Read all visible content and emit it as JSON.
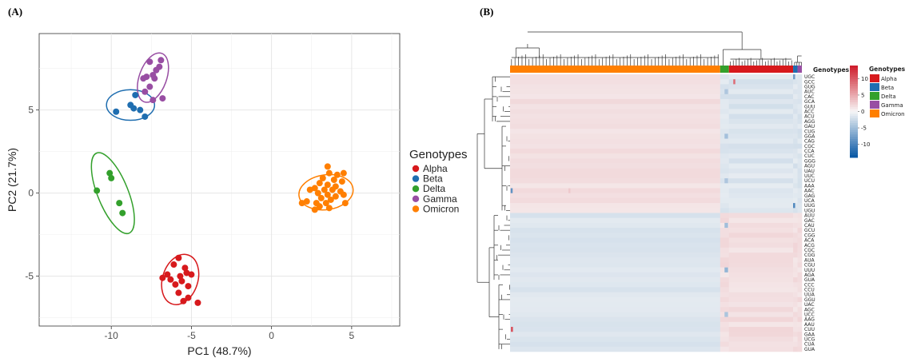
{
  "colors": {
    "Alpha": "#d7191c",
    "Beta": "#1f6eb0",
    "Delta": "#33a02c",
    "Gamma": "#984ea3",
    "Omicron": "#ff7f00"
  },
  "chart_data": [
    {
      "type": "scatter",
      "panel_label": "(A)",
      "xlabel": "PC1 (48.7%)",
      "ylabel": "PC2 (21.7%)",
      "xlim": [
        -14.5,
        8
      ],
      "ylim": [
        -8,
        9.6
      ],
      "xticks": [
        -10,
        -5,
        0,
        5
      ],
      "yticks": [
        -5,
        0,
        5
      ],
      "grid": true,
      "legend": {
        "title": "Genotypes",
        "position": "right",
        "items": [
          "Alpha",
          "Beta",
          "Delta",
          "Gamma",
          "Omicron"
        ]
      },
      "series": [
        {
          "name": "Alpha",
          "points": [
            [
              -5.8,
              -3.9
            ],
            [
              -6.1,
              -4.3
            ],
            [
              -5.4,
              -4.5
            ],
            [
              -6.5,
              -4.9
            ],
            [
              -5.3,
              -4.8
            ],
            [
              -5.0,
              -4.9
            ],
            [
              -5.7,
              -5.0
            ],
            [
              -6.3,
              -5.2
            ],
            [
              -6.8,
              -5.1
            ],
            [
              -5.6,
              -5.3
            ],
            [
              -5.2,
              -5.6
            ],
            [
              -6.0,
              -5.5
            ],
            [
              -5.8,
              -6.0
            ],
            [
              -5.2,
              -6.3
            ],
            [
              -5.5,
              -6.5
            ],
            [
              -4.6,
              -6.6
            ]
          ]
        },
        {
          "name": "Beta",
          "points": [
            [
              -8.5,
              5.9
            ],
            [
              -8.8,
              5.3
            ],
            [
              -8.6,
              5.1
            ],
            [
              -9.7,
              4.9
            ],
            [
              -8.2,
              5.0
            ],
            [
              -7.9,
              4.6
            ]
          ]
        },
        {
          "name": "Delta",
          "points": [
            [
              -10.1,
              1.2
            ],
            [
              -10.0,
              0.9
            ],
            [
              -10.9,
              0.15
            ],
            [
              -9.5,
              -0.6
            ],
            [
              -9.3,
              -1.2
            ]
          ]
        },
        {
          "name": "Gamma",
          "points": [
            [
              -6.9,
              8.0
            ],
            [
              -7.6,
              7.9
            ],
            [
              -7.0,
              7.6
            ],
            [
              -7.2,
              7.4
            ],
            [
              -7.4,
              7.1
            ],
            [
              -7.3,
              6.9
            ],
            [
              -7.8,
              7.0
            ],
            [
              -8.0,
              6.9
            ],
            [
              -7.6,
              6.4
            ],
            [
              -7.9,
              6.1
            ],
            [
              -6.8,
              5.7
            ],
            [
              -7.4,
              5.6
            ]
          ]
        },
        {
          "name": "Omicron",
          "points": [
            [
              3.5,
              1.6
            ],
            [
              3.6,
              1.2
            ],
            [
              4.1,
              1.1
            ],
            [
              4.5,
              1.2
            ],
            [
              3.2,
              0.9
            ],
            [
              3.9,
              0.8
            ],
            [
              4.4,
              0.7
            ],
            [
              3.0,
              0.6
            ],
            [
              3.5,
              0.5
            ],
            [
              4.0,
              0.4
            ],
            [
              2.7,
              0.3
            ],
            [
              3.3,
              0.2
            ],
            [
              3.8,
              0.2
            ],
            [
              4.3,
              0.1
            ],
            [
              2.4,
              0.2
            ],
            [
              2.9,
              0.0
            ],
            [
              3.5,
              -0.1
            ],
            [
              4.0,
              -0.2
            ],
            [
              4.5,
              -0.1
            ],
            [
              3.1,
              -0.3
            ],
            [
              3.7,
              -0.4
            ],
            [
              2.2,
              -0.5
            ],
            [
              2.8,
              -0.6
            ],
            [
              3.4,
              -0.6
            ],
            [
              4.6,
              -0.6
            ],
            [
              1.9,
              -0.6
            ],
            [
              3.0,
              -0.8
            ],
            [
              3.6,
              -0.9
            ],
            [
              2.7,
              -1.0
            ]
          ]
        }
      ],
      "ellipses": [
        {
          "group": "Alpha",
          "center": [
            -5.7,
            -5.2
          ],
          "rx": 1.1,
          "ry": 1.55,
          "angle": 18
        },
        {
          "group": "Beta",
          "center": [
            -8.8,
            5.3
          ],
          "rx": 1.5,
          "ry": 0.92,
          "angle": 0
        },
        {
          "group": "Delta",
          "center": [
            -9.9,
            0.0
          ],
          "rx": 0.95,
          "ry": 2.6,
          "angle": -22
        },
        {
          "group": "Gamma",
          "center": [
            -7.4,
            6.95
          ],
          "rx": 0.85,
          "ry": 1.55,
          "angle": 20
        },
        {
          "group": "Omicron",
          "center": [
            3.4,
            0.05
          ],
          "rx": 1.7,
          "ry": 1.05,
          "angle": -8
        }
      ]
    },
    {
      "type": "heatmap",
      "panel_label": "(B)",
      "column_annotation": {
        "label": "Genotypes",
        "blocks": [
          {
            "group": "Omicron",
            "from": 0,
            "to": 0.72
          },
          {
            "group": "Delta",
            "from": 0.72,
            "to": 0.75
          },
          {
            "group": "Alpha",
            "from": 0.75,
            "to": 0.97
          },
          {
            "group": "Beta",
            "from": 0.97,
            "to": 0.985
          },
          {
            "group": "Gamma",
            "from": 0.985,
            "to": 1.0
          }
        ],
        "legend_items": [
          "Alpha",
          "Beta",
          "Delta",
          "Gamma",
          "Omicron"
        ]
      },
      "color_scale": {
        "ticks": [
          10,
          5,
          0,
          -5,
          -10
        ],
        "min": -14,
        "max": 14,
        "low": "#0b5aa6",
        "mid": "#f7f7f7",
        "high": "#cf1f2e"
      },
      "rows": [
        "UGC",
        "GCC",
        "GUG",
        "AUC",
        "CAC",
        "GCA",
        "GUU",
        "ACC",
        "ACU",
        "AGG",
        "GAU",
        "CUG",
        "GGA",
        "CAG",
        "CGC",
        "CCA",
        "CUC",
        "GGG",
        "AGU",
        "UAU",
        "UUC",
        "UCU",
        "AAA",
        "AAC",
        "GAG",
        "UCA",
        "UUG",
        "UGU",
        "AUU",
        "GAC",
        "CAU",
        "GCU",
        "CGG",
        "ACA",
        "ACG",
        "CGC",
        "CGG",
        "AUA",
        "CGU",
        "UUU",
        "AGA",
        "GUA",
        "CCC",
        "CCU",
        "UUA",
        "GGU",
        "UAC",
        "AGC",
        "UCC",
        "AAG",
        "AAU",
        "CUU",
        "GAA",
        "UCG",
        "CUA",
        "GUA"
      ]
    }
  ]
}
